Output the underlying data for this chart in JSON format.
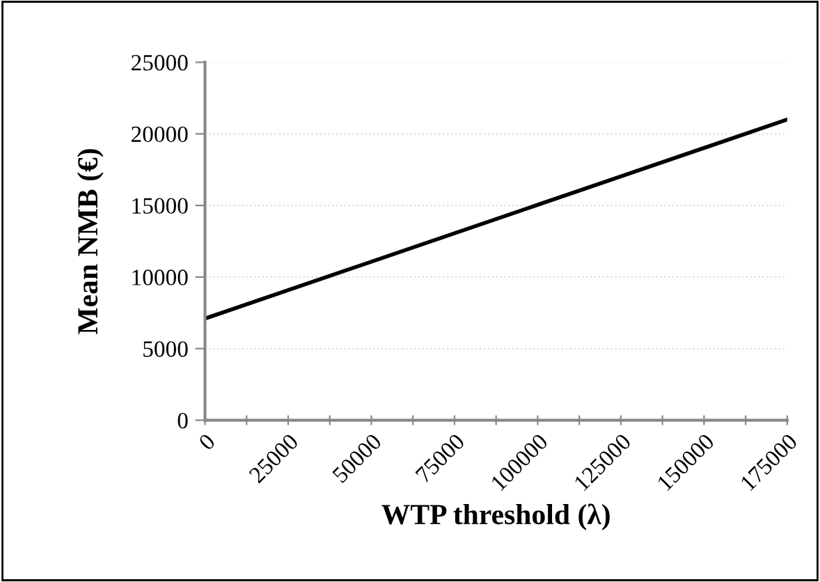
{
  "chart_data": {
    "type": "line",
    "xlabel": "WTP threshold (λ)",
    "ylabel": "Mean NMB (€)",
    "x": [
      0,
      175000
    ],
    "series": [
      {
        "color": "#000000",
        "values": [
          7100,
          21000
        ]
      }
    ],
    "xlim": [
      0,
      175000
    ],
    "ylim": [
      0,
      25000
    ],
    "xticks": [
      0,
      {
        "value": 12500,
        "label": null
      },
      25000,
      {
        "value": 37500,
        "label": null
      },
      50000,
      {
        "value": 62500,
        "label": null
      },
      75000,
      {
        "value": 87500,
        "label": null
      },
      100000,
      {
        "value": 112500,
        "label": null
      },
      125000,
      {
        "value": 137500,
        "label": null
      },
      150000,
      {
        "value": 162500,
        "label": null
      },
      175000
    ],
    "yticks": [
      0,
      5000,
      10000,
      15000,
      20000,
      25000
    ],
    "grid": "y",
    "marker": "none",
    "line_style": "solid"
  }
}
